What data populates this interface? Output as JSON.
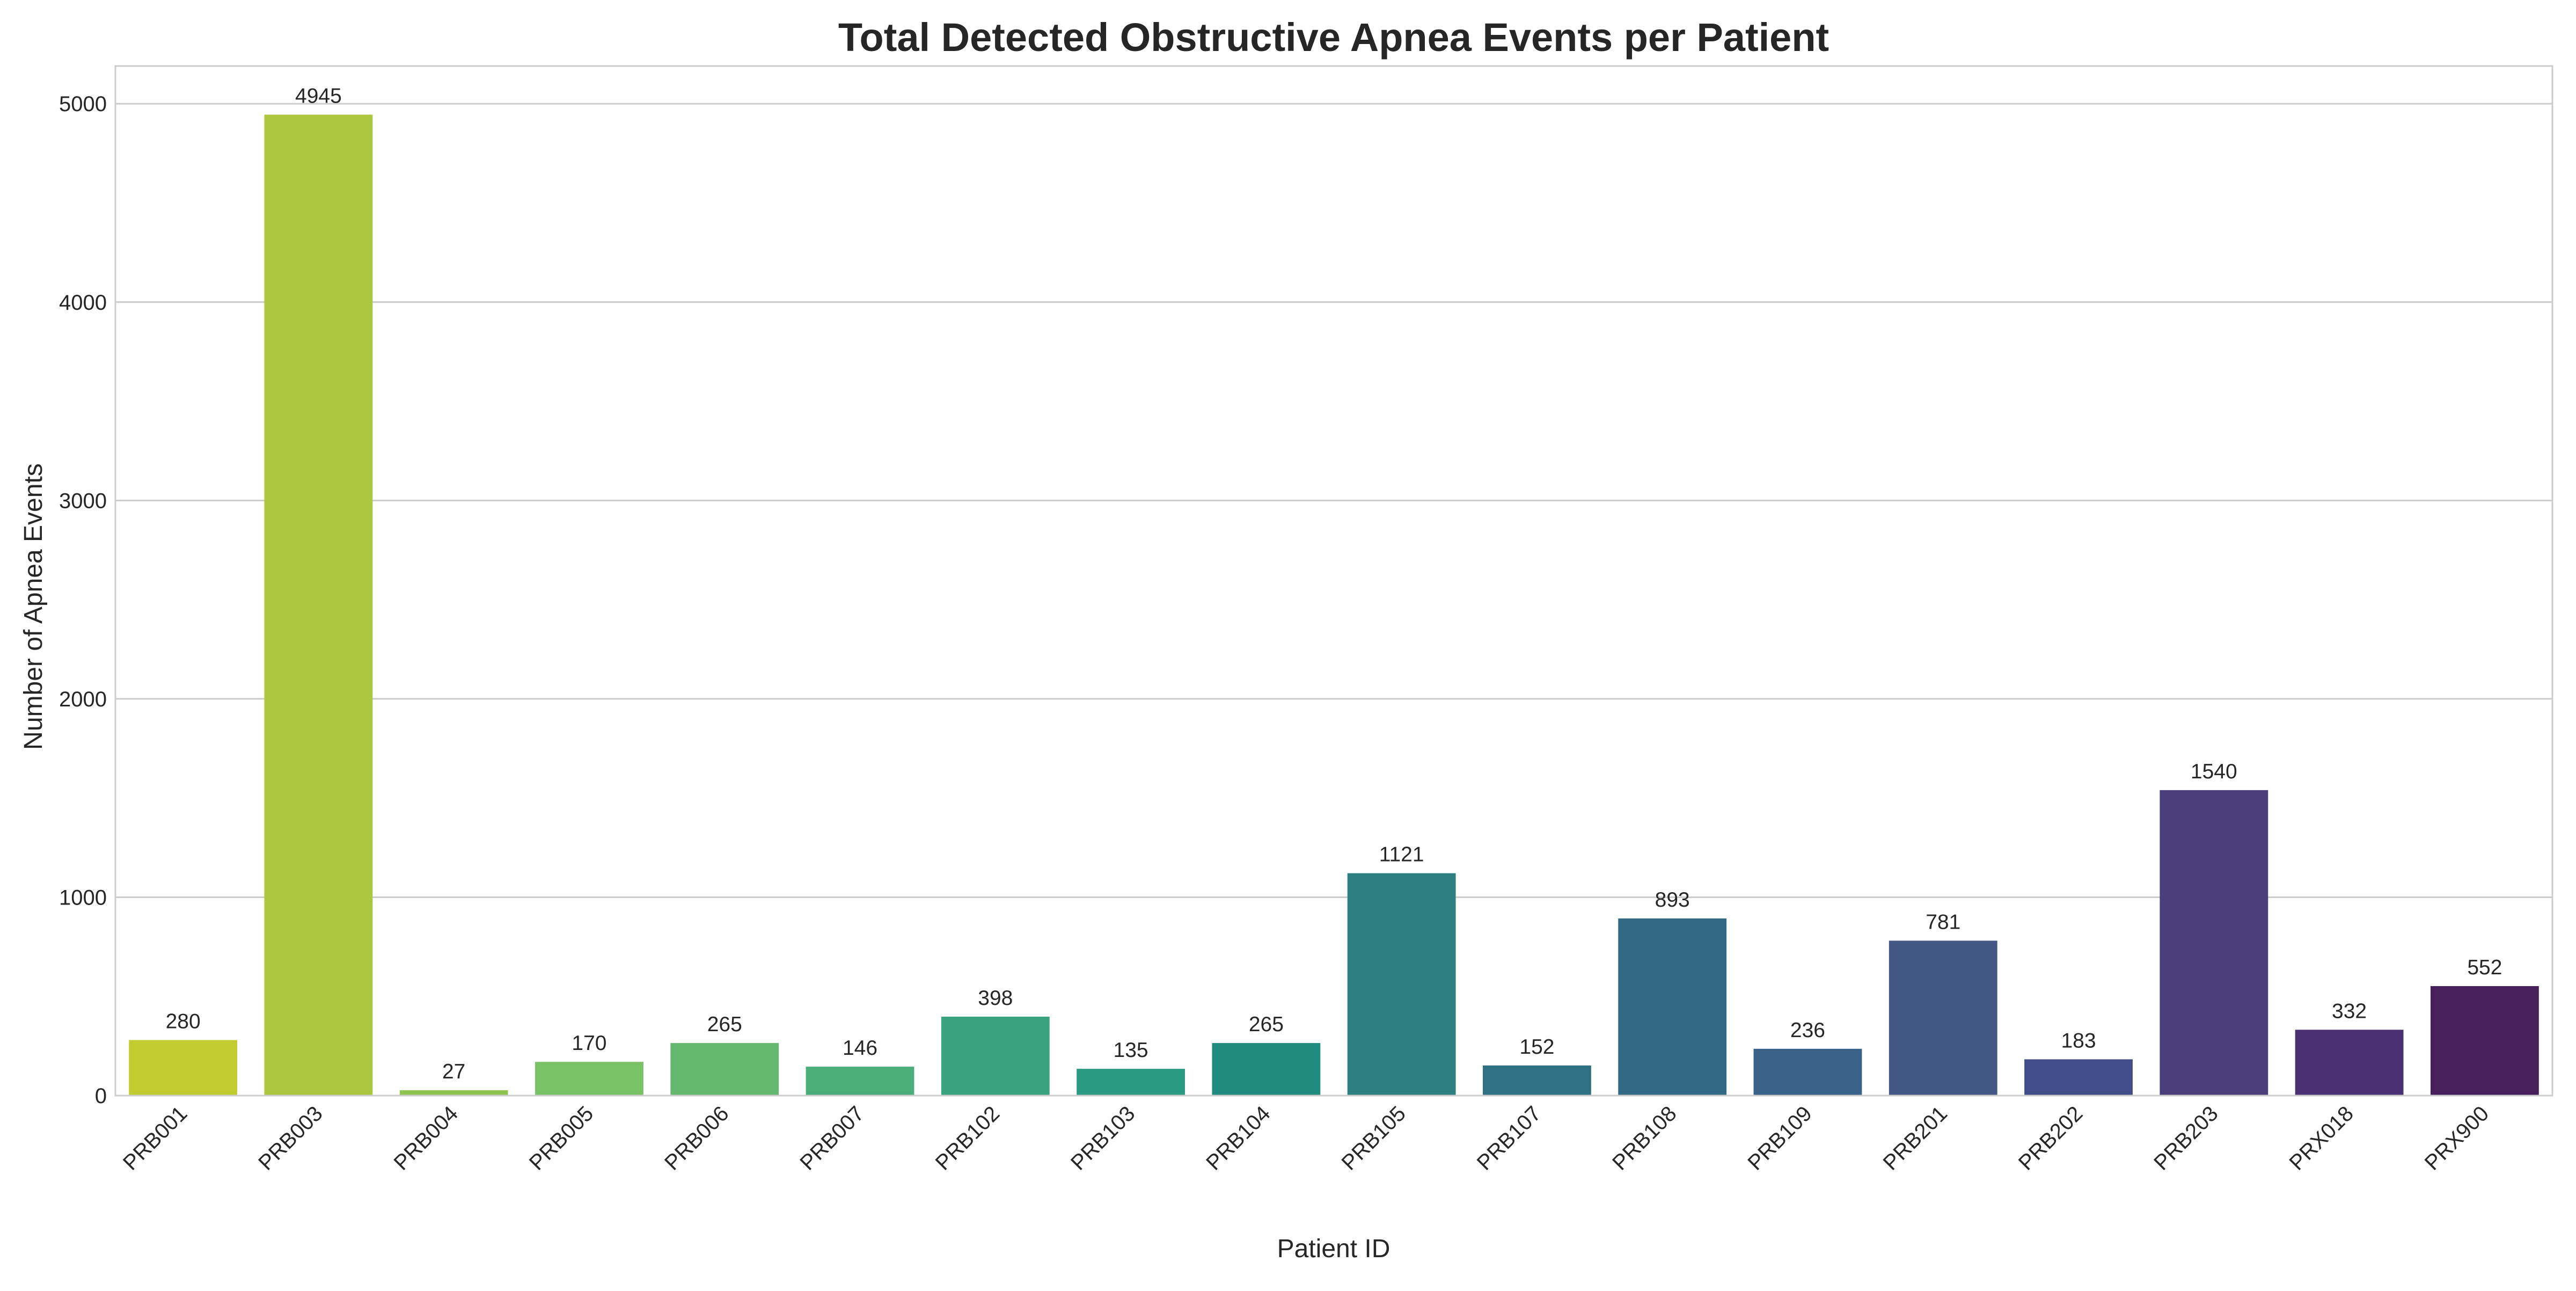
{
  "chart_data": {
    "type": "bar",
    "title": "Total Detected Obstructive Apnea Events per Patient",
    "xlabel": "Patient ID",
    "ylabel": "Number of Apnea Events",
    "categories": [
      "PRB001",
      "PRB003",
      "PRB004",
      "PRB005",
      "PRB006",
      "PRB007",
      "PRB102",
      "PRB103",
      "PRB104",
      "PRB105",
      "PRB107",
      "PRB108",
      "PRB109",
      "PRB201",
      "PRB202",
      "PRB203",
      "PRX018",
      "PRX900"
    ],
    "values": [
      280,
      4945,
      27,
      170,
      265,
      146,
      398,
      135,
      265,
      1121,
      152,
      893,
      236,
      781,
      183,
      1540,
      332,
      552
    ],
    "data_labels": [
      "280",
      "4945",
      "27",
      "170",
      "265",
      "146",
      "398",
      "135",
      "265",
      "1121",
      "152",
      "893",
      "236",
      "781",
      "183",
      "1540",
      "332",
      "552"
    ],
    "ylim": [
      0,
      5190
    ],
    "yticks": [
      0,
      1000,
      2000,
      3000,
      4000,
      5000
    ],
    "ytick_labels": [
      "0",
      "1000",
      "2000",
      "3000",
      "4000",
      "5000"
    ],
    "grid": true,
    "colormap": "viridis (reversed)",
    "colors": [
      "#c2cb2f",
      "#adc63f",
      "#90c451",
      "#79c265",
      "#64b76f",
      "#4bae7a",
      "#38a37e",
      "#2a9b82",
      "#228b80",
      "#2e7f80",
      "#2d7182",
      "#326a85",
      "#3a6187",
      "#435784",
      "#414d86",
      "#4a3f7b",
      "#4b3173",
      "#471f5b"
    ]
  }
}
